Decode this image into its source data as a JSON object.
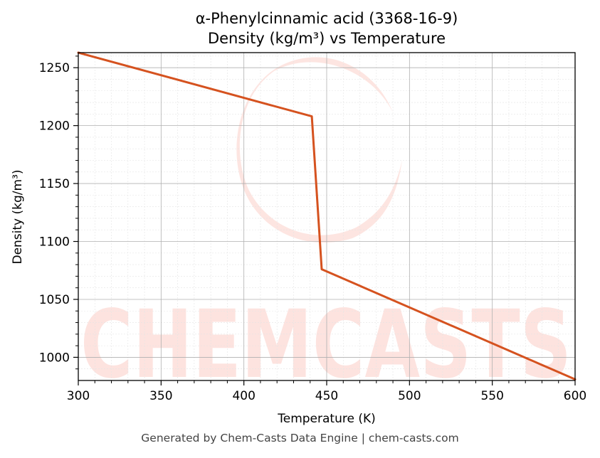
{
  "chart_data": {
    "type": "line",
    "title": "α-Phenylcinnamic acid (3368-16-9)",
    "subtitle": "Density (kg/m³) vs Temperature",
    "xlabel": "Temperature (K)",
    "ylabel": "Density (kg/m³)",
    "xlim": [
      300,
      600
    ],
    "ylim": [
      980,
      1263
    ],
    "xticks": [
      300,
      350,
      400,
      450,
      500,
      550,
      600
    ],
    "yticks": [
      1000,
      1050,
      1100,
      1150,
      1200,
      1250
    ],
    "grid": true,
    "legend": "none",
    "series": [
      {
        "color": "#d5521f",
        "x": [
          300,
          441,
          447,
          600
        ],
        "y": [
          1263,
          1208,
          1076,
          981
        ]
      }
    ]
  },
  "watermark": {
    "text": "CHEMCASTS",
    "color": "#fde0dc"
  },
  "footer": "Generated by Chem-Casts Data Engine | chem-casts.com"
}
